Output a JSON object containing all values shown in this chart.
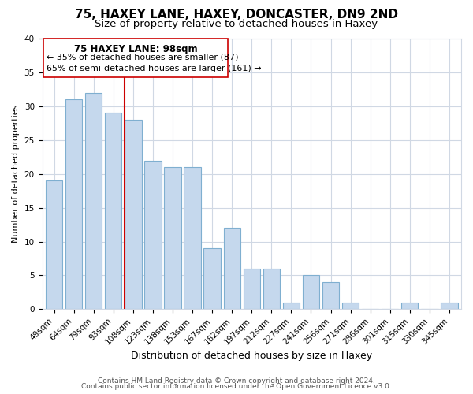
{
  "title": "75, HAXEY LANE, HAXEY, DONCASTER, DN9 2ND",
  "subtitle": "Size of property relative to detached houses in Haxey",
  "xlabel": "Distribution of detached houses by size in Haxey",
  "ylabel": "Number of detached properties",
  "categories": [
    "49sqm",
    "64sqm",
    "79sqm",
    "93sqm",
    "108sqm",
    "123sqm",
    "138sqm",
    "153sqm",
    "167sqm",
    "182sqm",
    "197sqm",
    "212sqm",
    "227sqm",
    "241sqm",
    "256sqm",
    "271sqm",
    "286sqm",
    "301sqm",
    "315sqm",
    "330sqm",
    "345sqm"
  ],
  "values": [
    19,
    31,
    32,
    29,
    28,
    22,
    21,
    21,
    9,
    12,
    6,
    6,
    1,
    5,
    4,
    1,
    0,
    0,
    1,
    0,
    1
  ],
  "bar_color": "#c5d8ed",
  "bar_edge_color": "#7fafd0",
  "marker_label": "75 HAXEY LANE: 98sqm",
  "annotation_line1": "← 35% of detached houses are smaller (87)",
  "annotation_line2": "65% of semi-detached houses are larger (161) →",
  "marker_line_color": "#cc0000",
  "annotation_box_edge": "#cc0000",
  "ylim": [
    0,
    40
  ],
  "yticks": [
    0,
    5,
    10,
    15,
    20,
    25,
    30,
    35,
    40
  ],
  "footer1": "Contains HM Land Registry data © Crown copyright and database right 2024.",
  "footer2": "Contains public sector information licensed under the Open Government Licence v3.0.",
  "background_color": "#ffffff",
  "grid_color": "#d0d8e4",
  "title_fontsize": 11,
  "subtitle_fontsize": 9.5,
  "xlabel_fontsize": 9,
  "ylabel_fontsize": 8,
  "tick_fontsize": 7.5,
  "footer_fontsize": 6.5
}
